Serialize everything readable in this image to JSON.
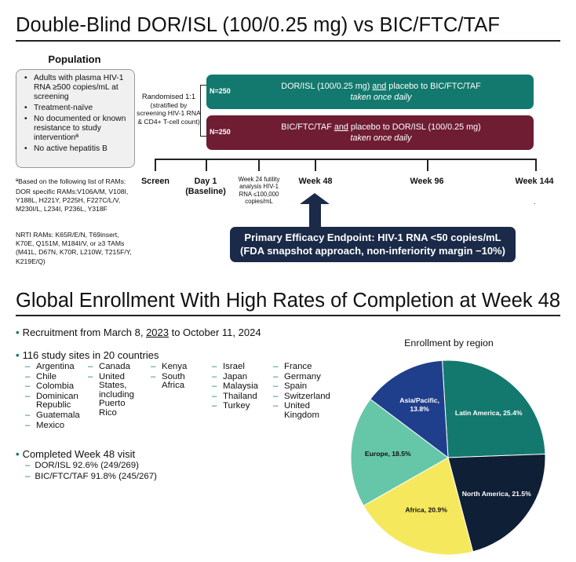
{
  "top": {
    "title": "Double-Blind DOR/ISL (100/0.25 mg) vs BIC/FTC/TAF",
    "population_heading": "Population",
    "population_items": [
      "Adults with plasma HIV-1 RNA ≥500 copies/mL at screening",
      "Treatment-naïve",
      "No documented or known resistance to study interventionª",
      "No active hepatitis B"
    ],
    "footnote_head": "ªBased on the following list of RAMs:",
    "footnote_dor": "DOR specific RAMs:V106A/M, V108I, Y188L, H221Y, P225H, F227C/L/V, M230I/L, L234I, P236L, Y318F",
    "footnote_nrti": "NRTI RAMs: K65R/E/N, T69insert, K70E, Q151M, M184I/V, or ≥3 TAMs (M41L, D67N, K70R, L210W, T215F/Y, K219E/Q)",
    "randomised": "Randomised 1:1",
    "stratified": "(stratified by screening HIV-1 RNA & CD4+ T-cell count)",
    "arm1": {
      "n": "N=250",
      "line_a": "DOR/ISL (100/0.25 mg) ",
      "line_and": "and",
      "line_b": " placebo to BIC/FTC/TAF",
      "line2": "taken once daily"
    },
    "arm2": {
      "n": "N=250",
      "line_a": "BIC/FTC/TAF ",
      "line_and": "and",
      "line_b": " placebo to DOR/ISL (100/0.25 mg)",
      "line2": "taken once daily"
    },
    "timeline": {
      "screen": "Screen",
      "day1": "Day 1",
      "baseline": "(Baseline)",
      "wk24": "Week 24 futility analysis HIV-1 RNA ≤100,000 copies/mL",
      "wk48": "Week 48",
      "wk96": "Week 96",
      "wk144": "Week 144"
    },
    "endpoint_line1": "Primary Efficacy Endpoint: HIV-1 RNA <50 copies/mL",
    "endpoint_line2": "(FDA snapshot approach, non-inferiority margin −10%)",
    "stray_dot": "."
  },
  "bottom": {
    "title": "Global Enrollment With High Rates of Completion at Week 48",
    "recruit_a": "Recruitment from March 8, ",
    "recruit_year": "2023",
    "recruit_b": " to October 11, 2024",
    "sites": "116 study sites in 20 countries",
    "countries_col1": [
      "Argentina",
      "Chile",
      "Colombia",
      "Dominican Republic",
      "Guatemala",
      "Mexico"
    ],
    "countries_col2": [
      "Canada",
      "United States, including Puerto Rico"
    ],
    "countries_col3": [
      "Kenya",
      "South Africa"
    ],
    "countries_col4": [
      "Israel",
      "Japan",
      "Malaysia",
      "Thailand",
      "Turkey"
    ],
    "countries_col5": [
      "France",
      "Germany",
      "Spain",
      "Switzerland",
      "United Kingdom"
    ],
    "completed": "Completed Week 48 visit",
    "completed_dor": "DOR/ISL 92.6% (249/269)",
    "completed_bic": "BIC/FTC/TAF 91.8% (245/267)"
  },
  "chart_data": {
    "type": "pie",
    "title": "Enrollment by region",
    "slices": [
      {
        "label": "Latin America, 25.4%",
        "value": 25.4,
        "color": "#13796e"
      },
      {
        "label": "North America, 21.5%",
        "value": 21.5,
        "color": "#0f1f36"
      },
      {
        "label": "Africa, 20.9%",
        "value": 20.9,
        "color": "#f6e85c"
      },
      {
        "label": "Europe, 18.5%",
        "value": 18.5,
        "color": "#66c7a8"
      },
      {
        "label": "Asia/Pacific, 13.8%",
        "value": 13.8,
        "color": "#1f3f8c"
      }
    ]
  }
}
